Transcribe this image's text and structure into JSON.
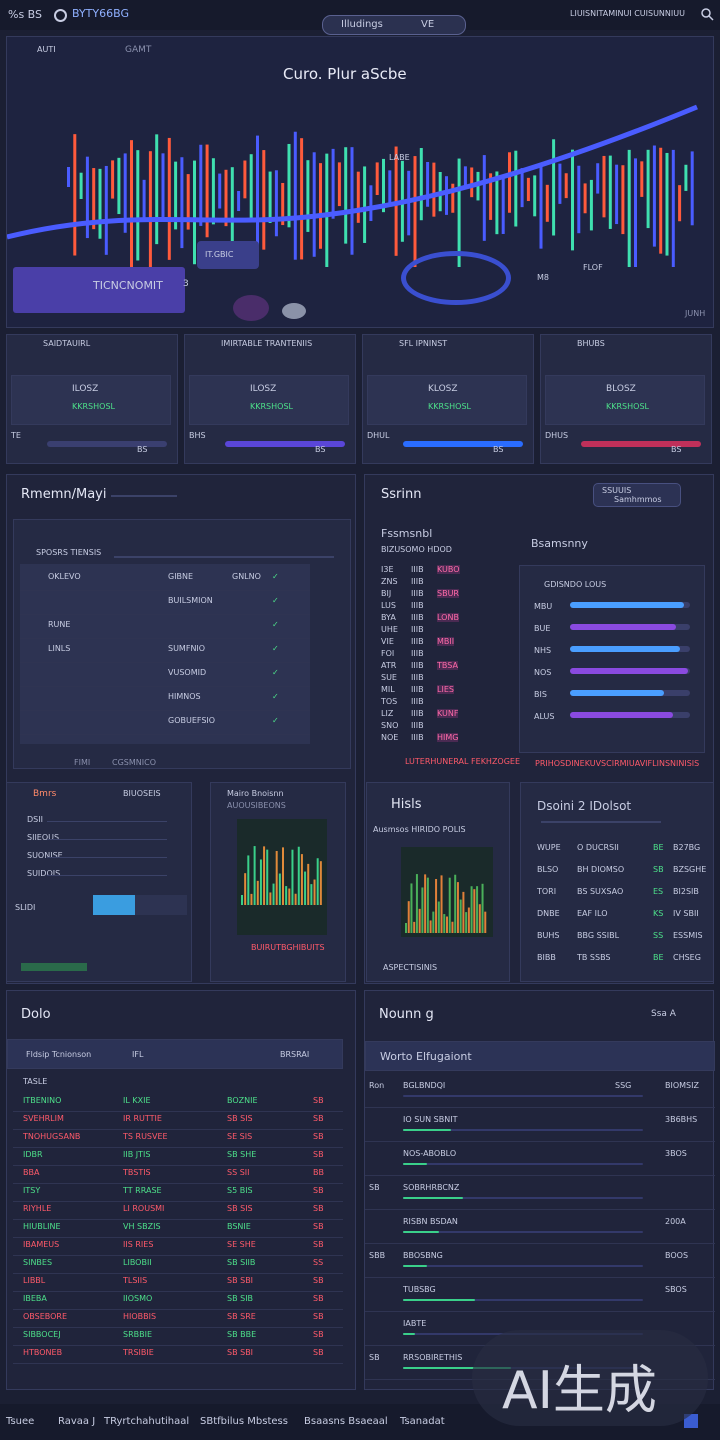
{
  "topbar": {
    "left_text": "%s BS",
    "brand": "BYTY66BG",
    "center_pill": "Illudings",
    "center_suffix": "VE",
    "right_text": "LIUISNITAMINUI CUISUNNIUU",
    "right_icon": "search-icon"
  },
  "hero": {
    "small_top": "GAMT",
    "title": "Curo. Plur  aScbe",
    "card_label": "TICNCNOMIT",
    "card_value": "3",
    "tag_a": "IT.GBIC",
    "tag_b": "M8",
    "tag_c": "FLOF",
    "badge_a": "AUTI",
    "badge_b": "LABE",
    "footer_right": "JUNH",
    "colors": {
      "up": "#3fe0b0",
      "down": "#ff5a3c",
      "blue": "#4a5cff",
      "accent": "#8b6bff"
    }
  },
  "stat_cards": [
    {
      "title": "SAIDTAUIRL",
      "value": "ILOSZ",
      "sub": "KKRSHOSL",
      "foot": "TE",
      "btn": "BS"
    },
    {
      "title": "IMIRTABLE TRANTENIIS",
      "value": "ILOSZ",
      "sub": "KKRSHOSL",
      "foot": "BHS",
      "btn": "BS"
    },
    {
      "title": "SFL IPNINST",
      "value": "KLOSZ",
      "sub": "KKRSHOSL",
      "foot": "DHUL",
      "btn": "BS"
    },
    {
      "title": "BHUBS",
      "value": "BLOSZ",
      "sub": "KKRSHOSL",
      "foot": "DHUS",
      "btn": "BS"
    }
  ],
  "left_section": {
    "title": "Rmemn/Mayi",
    "table_head": "SPOSRS TIENSIS",
    "rows": [
      {
        "a": "OKLEVO",
        "b": "GIBNE",
        "c": "GNLNO"
      },
      {
        "a": "",
        "b": "BUILSMION",
        "c": ""
      },
      {
        "a": "RUNE",
        "b": "",
        "c": ""
      },
      {
        "a": "LINLS",
        "b": "SUMFNIO",
        "c": ""
      },
      {
        "a": "",
        "b": "VUSOMID",
        "c": ""
      },
      {
        "a": "",
        "b": "HIMNOS",
        "c": ""
      },
      {
        "a": "",
        "b": "GOBUEFSIO",
        "c": ""
      }
    ],
    "footer_a": "FIMI",
    "footer_b": "CGSMNICO"
  },
  "right_section": {
    "title": "Ssrinn",
    "pill": "SSUUIS",
    "pill_sub": "Samhmmos",
    "col1_title": "Fssmsnbl",
    "col1_sub": "BIZUSOMO HDOD",
    "col2_title": "Bsamsnny",
    "col2_header": "GDISNDO LOUS",
    "col1_rows": [
      "I3E",
      "ZNS",
      "BIJ",
      "LUS",
      "BYA",
      "UHE",
      "VIE",
      "FOI",
      "ATR",
      "SUE",
      "MIL",
      "TOS",
      "LIZ",
      "SNO",
      "NOE"
    ],
    "col1_vals": [
      "KUBO",
      "SBUR",
      "LONB",
      "MBII",
      "TBSA",
      "LIES",
      "KUNF",
      "HIMG"
    ],
    "col1_footer": "LUTERHUNERAL FEKHZOGEE",
    "col2_labels": [
      "MBU",
      "BUE",
      "NHS",
      "NOS",
      "BIS",
      "ALUS"
    ],
    "col2_values": [
      0.95,
      0.88,
      0.92,
      0.98,
      0.78,
      0.86
    ],
    "col2_footer": "PRIHOSDINEKUVSCIRMIUAVIFLINSNINISIS"
  },
  "mid_cards": {
    "card1_title": "Bmrs",
    "card1_right": "BIUOSEIS",
    "card1_rows": [
      "DSII",
      "SIIEOUS",
      "SUONISE",
      "SUIDOIS"
    ],
    "card1_badge": "SLIDI",
    "card1_value": 0.45,
    "card2_title": "Mairo Bnoisnn",
    "card2_sub": "AUOUSIBEONS",
    "card2_foot": "BUIRUTBGHIBUITS",
    "card3_title": "Hisls",
    "card3_sub": "Ausmsos HIRIDO POLIS",
    "card3_foot": "ASPECTISINIS",
    "card4_title": "Dsoini  2 IDolsot",
    "card4_rows": [
      {
        "a": "WUPE",
        "b": "O DUCRSII",
        "c": "BE",
        "d": "B27BG"
      },
      {
        "a": "BLSO",
        "b": "BH DIOMSO",
        "c": "SB",
        "d": "BZSGHE"
      },
      {
        "a": "TORI",
        "b": "BS SUXSAO",
        "c": "ES",
        "d": "BI2SIB"
      },
      {
        "a": "DNBE",
        "b": "EAF ILO",
        "c": "KS",
        "d": "IV SBII"
      },
      {
        "a": "BUHS",
        "b": "BBG SSIBL",
        "c": "SS",
        "d": "ESSMIS"
      },
      {
        "a": "BIBB",
        "b": "TB SSBS",
        "c": "BE",
        "d": "CHSEG"
      }
    ]
  },
  "bottom_left": {
    "title": "Dolo",
    "head_a": "Fldsip Tcnionson",
    "head_b": "IFL",
    "head_c": "BRSRAI",
    "col_label": "TASLE",
    "rows": [
      {
        "name": "ITBENINO",
        "v1": "IL KXIE",
        "v2": "BOZNIE",
        "chg": "SB",
        "dir": "up"
      },
      {
        "name": "SVEHRLIM",
        "v1": "IR RUTTIE",
        "v2": "SB SIS",
        "chg": "SB",
        "dir": "down"
      },
      {
        "name": "TNOHUGSANB",
        "v1": "TS RUSVEE",
        "v2": "SE SIS",
        "chg": "SB",
        "dir": "down"
      },
      {
        "name": "IDBR",
        "v1": "IIB JTIS",
        "v2": "SB SHE",
        "chg": "SB",
        "dir": "up"
      },
      {
        "name": "BBA",
        "v1": "TBSTIS",
        "v2": "SS SII",
        "chg": "BB",
        "dir": "down"
      },
      {
        "name": "ITSY",
        "v1": "TT RRASE",
        "v2": "S5 BIS",
        "chg": "SB",
        "dir": "up"
      },
      {
        "name": "RIYHLE",
        "v1": "LI ROUSMI",
        "v2": "SB SIS",
        "chg": "SB",
        "dir": "down"
      },
      {
        "name": "HIUBLINE",
        "v1": "VH SBZIS",
        "v2": "BSNIE",
        "chg": "SB",
        "dir": "up"
      },
      {
        "name": "IBAMEUS",
        "v1": "IIS RIES",
        "v2": "SE SHE",
        "chg": "SB",
        "dir": "down"
      },
      {
        "name": "SINBES",
        "v1": "LIBOBII",
        "v2": "SB SIIB",
        "chg": "SS",
        "dir": "up"
      },
      {
        "name": "LIBBL",
        "v1": "TLSIIS",
        "v2": "SB SBI",
        "chg": "SB",
        "dir": "down"
      },
      {
        "name": "IBEBA",
        "v1": "IIOSMO",
        "v2": "SB SIB",
        "chg": "SB",
        "dir": "up"
      },
      {
        "name": "OBSEBORE",
        "v1": "HIOBBIS",
        "v2": "SB SRE",
        "chg": "SB",
        "dir": "down"
      },
      {
        "name": "SIBBOCEJ",
        "v1": "SRBBIE",
        "v2": "SB BBE",
        "chg": "SB",
        "dir": "up"
      },
      {
        "name": "HTBONEB",
        "v1": "TRSIBIE",
        "v2": "SB SBI",
        "chg": "SB",
        "dir": "down"
      }
    ]
  },
  "bottom_right": {
    "title": "Nounn  g",
    "right": "Ssa  A",
    "sub_title": "Worto Elfugaiont",
    "items": [
      {
        "a": "Ron",
        "b": "BGLBNDQI",
        "c": "SSG",
        "d": "BIOMSIZ",
        "v": 0.0
      },
      {
        "a": "",
        "b": "IO SUN SBNIT",
        "c": "",
        "d": "3B6BHS",
        "v": 0.2
      },
      {
        "a": "",
        "b": "NOS-ABOBLO",
        "c": "",
        "d": "3BOS",
        "v": 0.1
      },
      {
        "a": "SB",
        "b": "SOBRHRBCNZ",
        "c": "",
        "d": "",
        "v": 0.25
      },
      {
        "a": "",
        "b": "RISBN BSDAN",
        "c": "",
        "d": "200A",
        "v": 0.15
      },
      {
        "a": "SBB",
        "b": "BBOSBNG",
        "c": "",
        "d": "BOOS",
        "v": 0.1
      },
      {
        "a": "",
        "b": "TUBSBG",
        "c": "",
        "d": "SBOS",
        "v": 0.3
      },
      {
        "a": "",
        "b": "IABTE",
        "c": "",
        "d": "",
        "v": 0.05
      },
      {
        "a": "SB",
        "b": "RRSOBIRETHIS",
        "c": "",
        "d": "",
        "v": 0.45
      }
    ]
  },
  "footer": {
    "items": [
      "Tsuee",
      "Ravaa J",
      "TRyrtchahutihaal",
      "SBtfbilus Mbstess",
      "Bsaasns Bsaeaal",
      "Tsanadat"
    ],
    "watermark": "AI生成"
  }
}
